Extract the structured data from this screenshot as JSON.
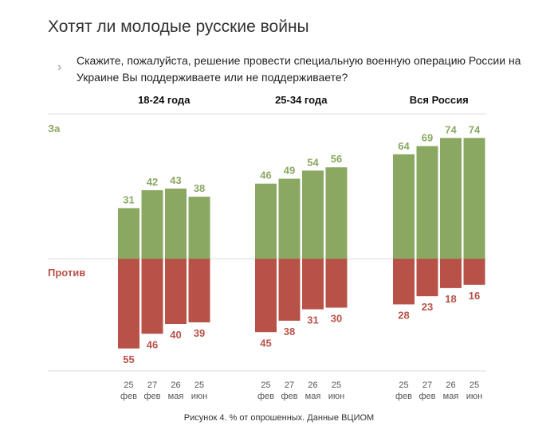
{
  "header": {
    "title": "Хотят ли молодые русские войны",
    "question": "Скажите, пожалуйста, решение провести специальную военную операцию России на Украине Вы поддерживаете или не поддерживаете?",
    "chevron_icon": "chevron-right-icon"
  },
  "caption": "Рисунок 4. % от опрошенных. Данные ВЦИОМ",
  "colors": {
    "support": "#8aa862",
    "oppose": "#b85248",
    "gridline": "#dddddd"
  },
  "chart_data": {
    "type": "bar",
    "layout": "diverging",
    "row_labels": {
      "support": "За",
      "oppose": "Против"
    },
    "groups": [
      {
        "name": "18-24 года",
        "categories": [
          [
            "25",
            "фев"
          ],
          [
            "27",
            "фев"
          ],
          [
            "26",
            "мая"
          ],
          [
            "25",
            "июн"
          ]
        ],
        "support": [
          31,
          42,
          43,
          38
        ],
        "oppose": [
          55,
          46,
          40,
          39
        ]
      },
      {
        "name": "25-34 года",
        "categories": [
          [
            "25",
            "фев"
          ],
          [
            "27",
            "фев"
          ],
          [
            "26",
            "мая"
          ],
          [
            "25",
            "июн"
          ]
        ],
        "support": [
          46,
          49,
          54,
          56
        ],
        "oppose": [
          45,
          38,
          31,
          30
        ]
      },
      {
        "name": "Вся Россия",
        "categories": [
          [
            "25",
            "фев"
          ],
          [
            "27",
            "фев"
          ],
          [
            "26",
            "мая"
          ],
          [
            "25",
            "июн"
          ]
        ],
        "support": [
          64,
          69,
          74,
          74
        ],
        "oppose": [
          28,
          23,
          18,
          16
        ]
      }
    ]
  }
}
